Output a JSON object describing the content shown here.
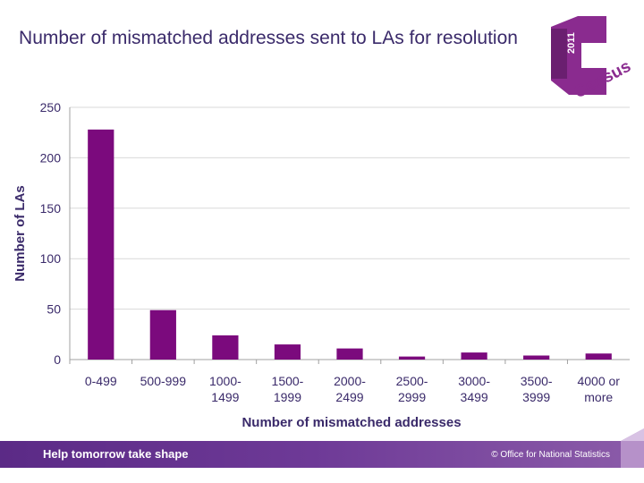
{
  "header": {
    "title": "Number of mismatched addresses sent to LAs for resolution"
  },
  "logo": {
    "year": "2011",
    "word": "Census",
    "color": "#8a2b8f"
  },
  "footer": {
    "tagline": "Help tomorrow take shape",
    "copyright": "© Office for National Statistics"
  },
  "chart_data": {
    "type": "bar",
    "categories": [
      [
        "0-499"
      ],
      [
        "500-999"
      ],
      [
        "1000-",
        "1499"
      ],
      [
        "1500-",
        "1999"
      ],
      [
        "2000-",
        "2499"
      ],
      [
        "2500-",
        "2999"
      ],
      [
        "3000-",
        "3499"
      ],
      [
        "3500-",
        "3999"
      ],
      [
        "4000 or",
        "more"
      ]
    ],
    "values": [
      228,
      49,
      24,
      15,
      11,
      3,
      7,
      4,
      6
    ],
    "xlabel": "Number of mismatched addresses",
    "ylabel": "Number of LAs",
    "ylim": [
      0,
      250
    ],
    "yticks": [
      0,
      50,
      100,
      150,
      200,
      250
    ],
    "grid": true,
    "bar_color": "#7b0a7d"
  }
}
